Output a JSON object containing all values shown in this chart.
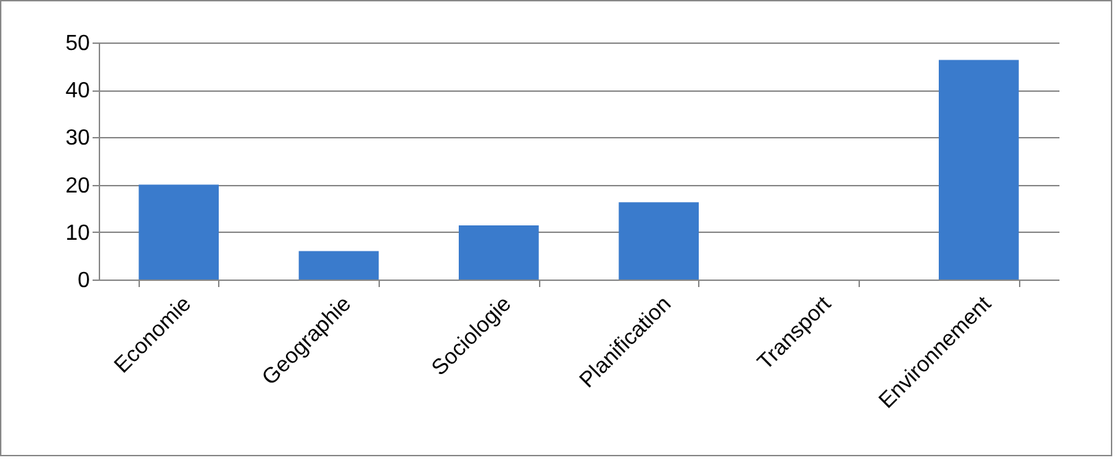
{
  "chart_data": {
    "type": "bar",
    "categories": [
      "Economie",
      "Geographie",
      "Sociologie",
      "Planification",
      "Transport",
      "Environnement"
    ],
    "values": [
      20,
      6,
      11.4,
      16.3,
      0,
      46.3
    ],
    "color": "#3a7bcc",
    "ylim": [
      0,
      50
    ],
    "yticks": [
      0,
      10,
      20,
      30,
      40,
      50
    ],
    "grid": "y"
  }
}
